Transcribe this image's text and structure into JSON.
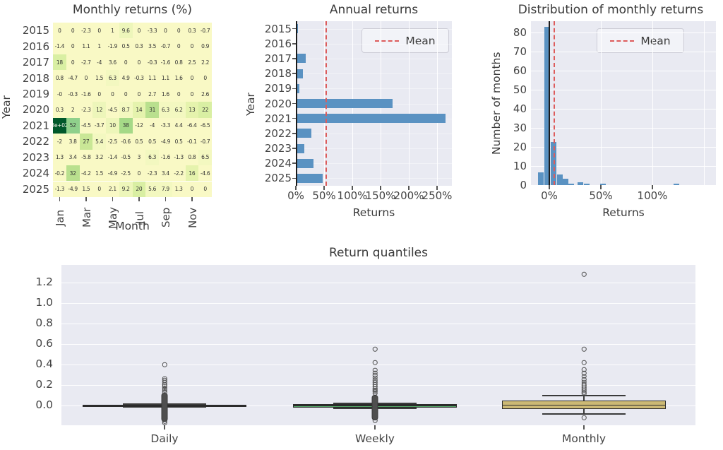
{
  "figure": {
    "name": "returns tear sheet"
  },
  "colors": {
    "axes_bg": "#e9eaf2",
    "bar_blue": "#5a92c2",
    "mean_red": "#dd5c5c",
    "zero_line": "#1c1c1c",
    "heat_base": "#f9f9c5",
    "heat_dark": "#00582b",
    "box_daily": "#4c72b0",
    "box_weekly": "#55a868",
    "box_monthly": "#ccb974"
  },
  "chart_data": [
    {
      "type": "heatmap",
      "title": "Monthly returns (%)",
      "xlabel": "Month",
      "ylabel": "Year",
      "years": [
        "2015",
        "2016",
        "2017",
        "2018",
        "2019",
        "2020",
        "2021",
        "2022",
        "2023",
        "2024",
        "2025"
      ],
      "month_ticks": [
        "Jan",
        "Mar",
        "May",
        "Jul",
        "Sep",
        "Nov"
      ],
      "cells": [
        [
          "0",
          "0",
          "-2.3",
          "0",
          "1",
          "9.6",
          "0",
          "-3.3",
          "0",
          "0",
          "0.3",
          "-0.7"
        ],
        [
          "-1.4",
          "0",
          "1.1",
          "1",
          "-1.9",
          "0.5",
          "0.3",
          "3.5",
          "-0.7",
          "0",
          "0",
          "0.9"
        ],
        [
          "18",
          "0",
          "-2.7",
          "-4",
          "3.6",
          "0",
          "0",
          "-0.3",
          "-1.6",
          "0.8",
          "2.5",
          "2.2"
        ],
        [
          "0.8",
          "-4.7",
          "0",
          "1.5",
          "6.3",
          "4.9",
          "-0.3",
          "1.1",
          "1.1",
          "1.6",
          "0",
          "0"
        ],
        [
          "-0",
          "-0.3",
          "-1.6",
          "0",
          "0",
          "0",
          "0",
          "2.7",
          "1.6",
          "0",
          "0",
          "2.6"
        ],
        [
          "0.3",
          "2",
          "-2.3",
          "12",
          "-4.5",
          "8.7",
          "14",
          "31",
          "6.3",
          "6.2",
          "13",
          "22"
        ],
        [
          "3e+02",
          "52",
          "-4.5",
          "-3.7",
          "10",
          "38",
          "-12",
          "-4",
          "-3.3",
          "4.4",
          "-6.4",
          "-6.5"
        ],
        [
          "-2",
          "3.8",
          "27",
          "5.4",
          "-2.5",
          "-0.6",
          "0.5",
          "0.5",
          "-4.9",
          "0.5",
          "-0.1",
          "-0.7"
        ],
        [
          "1.3",
          "3.4",
          "-5.8",
          "3.2",
          "-1.4",
          "-0.5",
          "3",
          "6.3",
          "-1.6",
          "-1.3",
          "0.8",
          "6.5"
        ],
        [
          "-0.2",
          "32",
          "-4.2",
          "1.5",
          "-4.9",
          "-2.5",
          "0",
          "-2.3",
          "3.4",
          "-2.2",
          "16",
          "-4.6"
        ],
        [
          "-1.3",
          "-4.9",
          "1.5",
          "0",
          "2.1",
          "9.2",
          "20",
          "5.6",
          "7.9",
          "1.3",
          "0",
          "0"
        ]
      ]
    },
    {
      "type": "bar",
      "orientation": "horizontal",
      "title": "Annual returns",
      "xlabel": "Returns",
      "ylabel": "Year",
      "categories": [
        "2015",
        "2016",
        "2017",
        "2018",
        "2019",
        "2020",
        "2021",
        "2022",
        "2023",
        "2024",
        "2025"
      ],
      "values_pct": [
        3,
        1,
        17,
        12,
        5,
        171,
        264,
        27,
        14,
        31,
        47
      ],
      "mean_pct": 52,
      "x_ticks": [
        "0%",
        "50%",
        "100%",
        "150%",
        "200%",
        "250%"
      ],
      "x_tick_pct": [
        0,
        50,
        100,
        150,
        200,
        250
      ],
      "legend": "Mean"
    },
    {
      "type": "histogram",
      "title": "Distribution of monthly returns",
      "xlabel": "Returns",
      "ylabel": "Number of months",
      "bins": [
        {
          "center_pct": -8,
          "count": 6.5
        },
        {
          "center_pct": -2,
          "count": 83
        },
        {
          "center_pct": 4,
          "count": 22.5
        },
        {
          "center_pct": 10,
          "count": 5.5
        },
        {
          "center_pct": 15.5,
          "count": 3.5
        },
        {
          "center_pct": 21,
          "count": 0.8
        },
        {
          "center_pct": 30,
          "count": 1.5
        },
        {
          "center_pct": 36,
          "count": 0.7
        },
        {
          "center_pct": 52,
          "count": 0.6
        },
        {
          "center_pct": 123,
          "count": 0.7
        }
      ],
      "mean_pct": 4,
      "x_ticks": [
        "0%",
        "50%",
        "100%"
      ],
      "x_tick_pct": [
        0,
        50,
        100
      ],
      "y_ticks": [
        0,
        10,
        20,
        30,
        40,
        50,
        60,
        70,
        80
      ],
      "legend": "Mean"
    },
    {
      "type": "box",
      "title": "Return quantiles",
      "categories": [
        "Daily",
        "Weekly",
        "Monthly"
      ],
      "y_ticks": [
        "0.0",
        "0.2",
        "0.4",
        "0.6",
        "0.8",
        "1.0",
        "1.2"
      ],
      "boxes": [
        {
          "label": "Daily",
          "color": "#4c72b0",
          "q1": -0.008,
          "q3": 0.006,
          "median": 0.0,
          "cap_hi": 0.013,
          "cap_lo": -0.016,
          "fliers_hi": [
            0.4,
            0.265,
            0.245,
            0.225,
            0.205,
            0.19,
            0.175,
            0.16,
            0.145,
            0.13
          ],
          "blob": [
            0.125,
            -0.145
          ],
          "fliers_lo": [
            -0.155,
            -0.17
          ]
        },
        {
          "label": "Weekly",
          "color": "#55a868",
          "q1": -0.02,
          "q3": 0.013,
          "median": -0.002,
          "cap_hi": 0.023,
          "cap_lo": -0.029,
          "fliers_hi": [
            0.55,
            0.42,
            0.345,
            0.32,
            0.295,
            0.27,
            0.245,
            0.225,
            0.205,
            0.185,
            0.165,
            0.15,
            0.135,
            0.12
          ],
          "blob": [
            0.105,
            -0.13
          ],
          "fliers_lo": [
            -0.145
          ]
        },
        {
          "label": "Monthly",
          "color": "#ccb974",
          "q1": -0.035,
          "q3": 0.046,
          "median": 0.004,
          "cap_hi": 0.1,
          "cap_lo": -0.08,
          "fliers_hi": [
            1.28,
            0.55,
            0.42,
            0.35,
            0.315,
            0.285,
            0.255,
            0.23,
            0.21,
            0.19,
            0.17,
            0.15,
            0.13,
            0.115
          ],
          "blob": null,
          "fliers_lo": [
            -0.12
          ]
        }
      ]
    }
  ]
}
